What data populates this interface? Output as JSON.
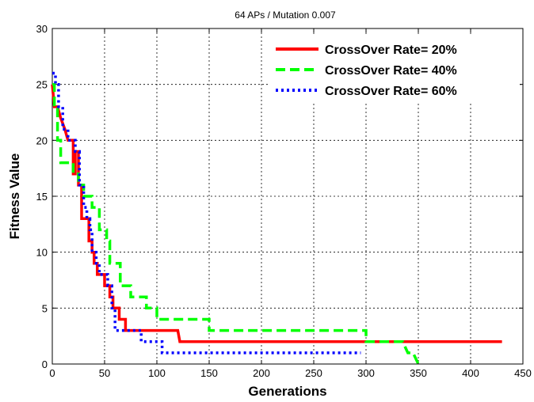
{
  "chart_data": {
    "type": "line",
    "title": "64 APs / Mutation 0.007",
    "xlabel": "Generations",
    "ylabel": "Fitness Value",
    "xlim": [
      0,
      450
    ],
    "ylim": [
      0,
      30
    ],
    "xticks": [
      0,
      50,
      100,
      150,
      200,
      250,
      300,
      350,
      400,
      450
    ],
    "yticks": [
      0,
      5,
      10,
      15,
      20,
      25,
      30
    ],
    "grid": true,
    "legend_position": "top-right",
    "series": [
      {
        "name": "CrossOver Rate= 20%",
        "color": "#ff0000",
        "style": "solid",
        "points": [
          [
            0,
            25
          ],
          [
            2,
            23
          ],
          [
            5,
            23
          ],
          [
            8,
            22
          ],
          [
            12,
            21
          ],
          [
            15,
            20
          ],
          [
            20,
            20
          ],
          [
            20,
            17
          ],
          [
            22,
            17
          ],
          [
            22,
            19
          ],
          [
            25,
            19
          ],
          [
            25,
            16
          ],
          [
            28,
            16
          ],
          [
            28,
            13
          ],
          [
            33,
            13
          ],
          [
            35,
            13
          ],
          [
            35,
            11
          ],
          [
            38,
            11
          ],
          [
            38,
            10
          ],
          [
            40,
            10
          ],
          [
            40,
            9
          ],
          [
            43,
            9
          ],
          [
            43,
            8
          ],
          [
            50,
            8
          ],
          [
            50,
            7
          ],
          [
            55,
            7
          ],
          [
            55,
            6
          ],
          [
            58,
            6
          ],
          [
            58,
            5
          ],
          [
            62,
            5
          ],
          [
            64,
            5
          ],
          [
            64,
            4
          ],
          [
            70,
            4
          ],
          [
            70,
            3
          ],
          [
            120,
            3
          ],
          [
            122,
            2
          ],
          [
            430,
            2
          ]
        ]
      },
      {
        "name": "CrossOver Rate= 40%",
        "color": "#00ff00",
        "style": "dashed",
        "points": [
          [
            0,
            25
          ],
          [
            2,
            25
          ],
          [
            2,
            23
          ],
          [
            5,
            23
          ],
          [
            5,
            20
          ],
          [
            8,
            20
          ],
          [
            8,
            18
          ],
          [
            20,
            18
          ],
          [
            20,
            17
          ],
          [
            25,
            17
          ],
          [
            25,
            16
          ],
          [
            30,
            16
          ],
          [
            30,
            15
          ],
          [
            38,
            15
          ],
          [
            38,
            14
          ],
          [
            45,
            14
          ],
          [
            45,
            12
          ],
          [
            52,
            12
          ],
          [
            52,
            11
          ],
          [
            55,
            11
          ],
          [
            55,
            9
          ],
          [
            65,
            9
          ],
          [
            65,
            7
          ],
          [
            75,
            7
          ],
          [
            75,
            6
          ],
          [
            90,
            6
          ],
          [
            90,
            5
          ],
          [
            100,
            5
          ],
          [
            100,
            4
          ],
          [
            108,
            4
          ],
          [
            108,
            4
          ],
          [
            150,
            4
          ],
          [
            150,
            3
          ],
          [
            300,
            3
          ],
          [
            300,
            2
          ],
          [
            320,
            2
          ],
          [
            335,
            2
          ],
          [
            340,
            1
          ],
          [
            345,
            1
          ],
          [
            350,
            0
          ]
        ]
      },
      {
        "name": "CrossOver Rate= 60%",
        "color": "#0000ff",
        "style": "dotted",
        "points": [
          [
            0,
            26
          ],
          [
            3,
            26
          ],
          [
            3,
            25
          ],
          [
            6,
            25
          ],
          [
            6,
            23
          ],
          [
            10,
            23
          ],
          [
            10,
            21
          ],
          [
            15,
            21
          ],
          [
            15,
            20
          ],
          [
            22,
            20
          ],
          [
            22,
            19
          ],
          [
            26,
            19
          ],
          [
            26,
            16
          ],
          [
            30,
            16
          ],
          [
            30,
            14
          ],
          [
            33,
            14
          ],
          [
            33,
            13
          ],
          [
            36,
            13
          ],
          [
            36,
            12
          ],
          [
            38,
            12
          ],
          [
            38,
            10
          ],
          [
            40,
            10
          ],
          [
            42,
            10
          ],
          [
            42,
            9
          ],
          [
            45,
            9
          ],
          [
            45,
            8
          ],
          [
            53,
            8
          ],
          [
            53,
            7
          ],
          [
            57,
            7
          ],
          [
            57,
            5
          ],
          [
            60,
            5
          ],
          [
            60,
            3
          ],
          [
            75,
            3
          ],
          [
            75,
            3
          ],
          [
            85,
            3
          ],
          [
            85,
            2
          ],
          [
            100,
            2
          ],
          [
            100,
            2
          ],
          [
            105,
            2
          ],
          [
            105,
            1
          ],
          [
            295,
            1
          ]
        ]
      }
    ]
  }
}
